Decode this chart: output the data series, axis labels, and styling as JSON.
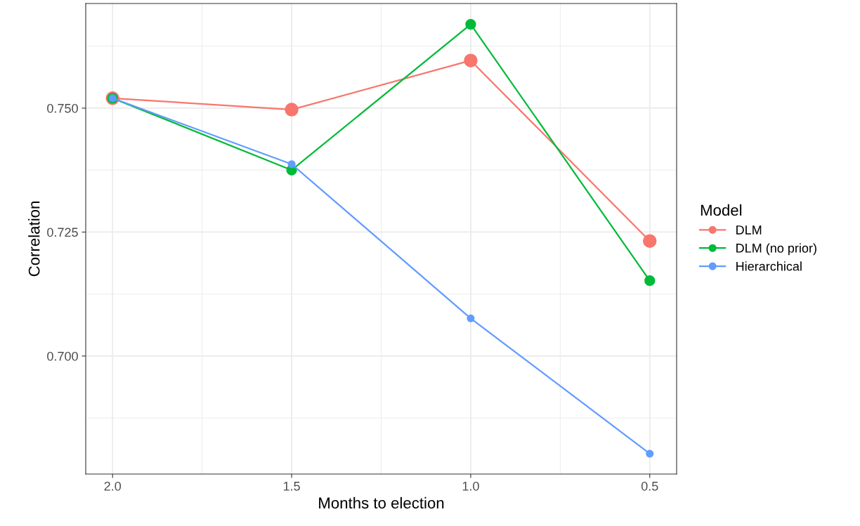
{
  "chart_data": {
    "type": "line",
    "xlabel": "Months to election",
    "ylabel": "Correlation",
    "legend_title": "Model",
    "x": [
      2.0,
      1.5,
      1.0,
      0.5
    ],
    "series": [
      {
        "name": "DLM",
        "color": "#f8766d",
        "values": [
          0.752,
          0.7497,
          0.7596,
          0.7232
        ]
      },
      {
        "name": "DLM (no prior)",
        "color": "#00ba38",
        "values": [
          0.752,
          0.7375,
          0.7669,
          0.7152
        ]
      },
      {
        "name": "Hierarchical",
        "color": "#619cff",
        "values": [
          0.752,
          0.7387,
          0.7076,
          0.6803
        ]
      }
    ],
    "xlim": [
      2.075,
      0.425
    ],
    "ylim": [
      0.6762,
      0.7711
    ],
    "xticks": [
      {
        "value": 2.0,
        "label": "2.0"
      },
      {
        "value": 1.5,
        "label": "1.5"
      },
      {
        "value": 1.0,
        "label": "1.0"
      },
      {
        "value": 0.5,
        "label": "0.5"
      }
    ],
    "yticks": [
      {
        "value": 0.7,
        "label": "0.700"
      },
      {
        "value": 0.725,
        "label": "0.725"
      },
      {
        "value": 0.75,
        "label": "0.750"
      }
    ],
    "grid": true,
    "legend": "right",
    "marker": "circle",
    "line_style": "solid"
  }
}
